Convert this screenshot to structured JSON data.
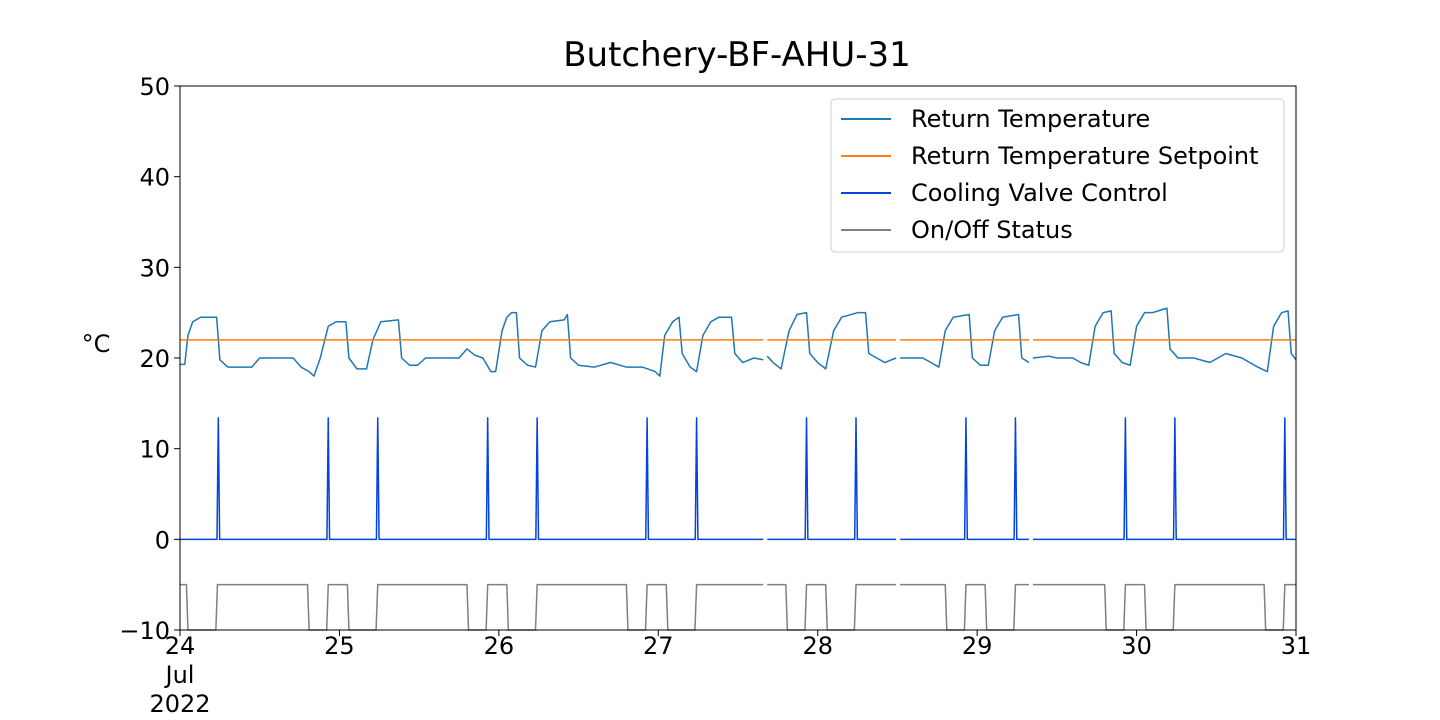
{
  "chart_data": {
    "type": "line",
    "title": "Butchery-BF-AHU-31",
    "xlabel": "",
    "ylabel": "°C",
    "x_range": [
      "2022-07-24 00:00",
      "2022-07-31 00:00"
    ],
    "ylim": [
      -10,
      50
    ],
    "grid": false,
    "legend_position": "top-right",
    "y_ticks": [
      -10,
      0,
      10,
      20,
      30,
      40,
      50
    ],
    "y_tick_labels": [
      "−10",
      "0",
      "10",
      "20",
      "30",
      "40",
      "50"
    ],
    "x_ticks": [
      "2022-07-24",
      "2022-07-25",
      "2022-07-26",
      "2022-07-27",
      "2022-07-28",
      "2022-07-29",
      "2022-07-30",
      "2022-07-31"
    ],
    "x_tick_labels": [
      {
        "day": "24",
        "month": "Jul",
        "year": "2022"
      },
      {
        "day": "25"
      },
      {
        "day": "26"
      },
      {
        "day": "27"
      },
      {
        "day": "28"
      },
      {
        "day": "29"
      },
      {
        "day": "30"
      },
      {
        "day": "31"
      }
    ],
    "data_gaps": [
      [
        "2022-07-27 15:48",
        "2022-07-27 16:24"
      ],
      [
        "2022-07-28 11:48",
        "2022-07-28 12:24"
      ],
      [
        "2022-07-29 07:48",
        "2022-07-29 08:24"
      ]
    ],
    "series": [
      {
        "name": "Return Temperature",
        "color": "#1f77b4",
        "values": [
          [
            "2022-07-24 00:00",
            19.3
          ],
          [
            "2022-07-24 00:43",
            19.3
          ],
          [
            "2022-07-24 01:12",
            22.5
          ],
          [
            "2022-07-24 01:55",
            24.0
          ],
          [
            "2022-07-24 03:07",
            24.5
          ],
          [
            "2022-07-24 05:31",
            24.5
          ],
          [
            "2022-07-24 06:00",
            19.8
          ],
          [
            "2022-07-24 07:12",
            19.0
          ],
          [
            "2022-07-24 10:48",
            19.0
          ],
          [
            "2022-07-24 12:00",
            20.0
          ],
          [
            "2022-07-24 17:02",
            20.0
          ],
          [
            "2022-07-24 18:14",
            19.0
          ],
          [
            "2022-07-24 19:26",
            18.5
          ],
          [
            "2022-07-24 20:10",
            18.0
          ],
          [
            "2022-07-24 21:07",
            20.0
          ],
          [
            "2022-07-24 22:19",
            23.5
          ],
          [
            "2022-07-24 23:31",
            24.0
          ],
          [
            "2022-07-25 00:58",
            24.0
          ],
          [
            "2022-07-25 01:26",
            20.0
          ],
          [
            "2022-07-25 02:38",
            18.8
          ],
          [
            "2022-07-25 04:05",
            18.8
          ],
          [
            "2022-07-25 05:02",
            22.0
          ],
          [
            "2022-07-25 06:14",
            24.0
          ],
          [
            "2022-07-25 08:53",
            24.2
          ],
          [
            "2022-07-25 09:22",
            20.0
          ],
          [
            "2022-07-25 10:34",
            19.2
          ],
          [
            "2022-07-25 11:46",
            19.2
          ],
          [
            "2022-07-25 12:58",
            20.0
          ],
          [
            "2022-07-25 18:00",
            20.0
          ],
          [
            "2022-07-25 19:12",
            21.0
          ],
          [
            "2022-07-25 20:24",
            20.3
          ],
          [
            "2022-07-25 21:36",
            20.0
          ],
          [
            "2022-07-25 22:48",
            18.5
          ],
          [
            "2022-07-25 23:31",
            18.5
          ],
          [
            "2022-07-26 00:29",
            23.0
          ],
          [
            "2022-07-26 01:12",
            24.5
          ],
          [
            "2022-07-26 01:55",
            25.0
          ],
          [
            "2022-07-26 02:38",
            25.0
          ],
          [
            "2022-07-26 03:07",
            20.0
          ],
          [
            "2022-07-26 04:19",
            19.2
          ],
          [
            "2022-07-26 05:31",
            19.0
          ],
          [
            "2022-07-26 06:29",
            23.0
          ],
          [
            "2022-07-26 07:41",
            24.0
          ],
          [
            "2022-07-26 09:50",
            24.2
          ],
          [
            "2022-07-26 10:19",
            24.8
          ],
          [
            "2022-07-26 10:48",
            20.0
          ],
          [
            "2022-07-26 12:00",
            19.2
          ],
          [
            "2022-07-26 14:24",
            19.0
          ],
          [
            "2022-07-26 16:48",
            19.5
          ],
          [
            "2022-07-26 19:12",
            19.0
          ],
          [
            "2022-07-26 21:36",
            19.0
          ],
          [
            "2022-07-26 23:31",
            18.5
          ],
          [
            "2022-07-27 00:14",
            18.0
          ],
          [
            "2022-07-27 00:58",
            22.5
          ],
          [
            "2022-07-27 02:10",
            24.0
          ],
          [
            "2022-07-27 03:07",
            24.5
          ],
          [
            "2022-07-27 03:36",
            20.5
          ],
          [
            "2022-07-27 04:48",
            19.0
          ],
          [
            "2022-07-27 05:46",
            18.5
          ],
          [
            "2022-07-27 06:43",
            22.5
          ],
          [
            "2022-07-27 07:55",
            24.0
          ],
          [
            "2022-07-27 09:07",
            24.5
          ],
          [
            "2022-07-27 11:02",
            24.5
          ],
          [
            "2022-07-27 11:31",
            20.5
          ],
          [
            "2022-07-27 12:43",
            19.5
          ],
          [
            "2022-07-27 14:24",
            20.0
          ],
          [
            "2022-07-27 15:48",
            19.8
          ],
          [
            "2022-07-27 16:24",
            20.2
          ],
          [
            "2022-07-27 17:17",
            19.5
          ],
          [
            "2022-07-27 18:29",
            18.8
          ],
          [
            "2022-07-27 19:41",
            23.0
          ],
          [
            "2022-07-27 20:53",
            24.8
          ],
          [
            "2022-07-27 22:19",
            25.0
          ],
          [
            "2022-07-27 22:48",
            20.5
          ],
          [
            "2022-07-28 00:00",
            19.5
          ],
          [
            "2022-07-28 01:12",
            18.8
          ],
          [
            "2022-07-28 02:24",
            23.0
          ],
          [
            "2022-07-28 03:36",
            24.5
          ],
          [
            "2022-07-28 06:00",
            25.0
          ],
          [
            "2022-07-28 07:12",
            25.0
          ],
          [
            "2022-07-28 07:41",
            20.5
          ],
          [
            "2022-07-28 08:53",
            20.0
          ],
          [
            "2022-07-28 10:05",
            19.5
          ],
          [
            "2022-07-28 11:48",
            20.0
          ],
          [
            "2022-07-28 12:24",
            20.0
          ],
          [
            "2022-07-28 15:50",
            20.0
          ],
          [
            "2022-07-28 17:02",
            19.5
          ],
          [
            "2022-07-28 18:14",
            19.0
          ],
          [
            "2022-07-28 19:12",
            23.0
          ],
          [
            "2022-07-28 20:24",
            24.5
          ],
          [
            "2022-07-28 22:48",
            24.8
          ],
          [
            "2022-07-28 23:17",
            20.0
          ],
          [
            "2022-07-29 00:29",
            19.2
          ],
          [
            "2022-07-29 01:41",
            19.2
          ],
          [
            "2022-07-29 02:38",
            23.0
          ],
          [
            "2022-07-29 03:50",
            24.5
          ],
          [
            "2022-07-29 06:14",
            24.8
          ],
          [
            "2022-07-29 06:43",
            20.0
          ],
          [
            "2022-07-29 07:48",
            19.5
          ],
          [
            "2022-07-29 08:24",
            20.0
          ],
          [
            "2022-07-29 10:48",
            20.2
          ],
          [
            "2022-07-29 12:00",
            20.0
          ],
          [
            "2022-07-29 14:24",
            20.0
          ],
          [
            "2022-07-29 15:36",
            19.5
          ],
          [
            "2022-07-29 16:48",
            19.2
          ],
          [
            "2022-07-29 17:46",
            23.5
          ],
          [
            "2022-07-29 18:58",
            25.0
          ],
          [
            "2022-07-29 20:10",
            25.2
          ],
          [
            "2022-07-29 20:38",
            20.5
          ],
          [
            "2022-07-29 21:50",
            19.5
          ],
          [
            "2022-07-29 23:02",
            19.2
          ],
          [
            "2022-07-30 00:00",
            23.5
          ],
          [
            "2022-07-30 01:12",
            25.0
          ],
          [
            "2022-07-30 02:24",
            25.0
          ],
          [
            "2022-07-30 04:34",
            25.5
          ],
          [
            "2022-07-30 05:02",
            21.0
          ],
          [
            "2022-07-30 06:14",
            20.0
          ],
          [
            "2022-07-30 08:38",
            20.0
          ],
          [
            "2022-07-30 11:02",
            19.5
          ],
          [
            "2022-07-30 13:26",
            20.5
          ],
          [
            "2022-07-30 15:50",
            20.0
          ],
          [
            "2022-07-30 18:14",
            19.0
          ],
          [
            "2022-07-30 19:41",
            18.5
          ],
          [
            "2022-07-30 20:38",
            23.5
          ],
          [
            "2022-07-30 21:50",
            25.0
          ],
          [
            "2022-07-30 22:48",
            25.2
          ],
          [
            "2022-07-30 23:17",
            20.5
          ],
          [
            "2022-07-31 00:00",
            19.8
          ]
        ]
      },
      {
        "name": "Return Temperature Setpoint",
        "color": "#ff7f0e",
        "values": [
          [
            "2022-07-24 00:00",
            22
          ],
          [
            "2022-07-27 15:48",
            22
          ],
          [
            "2022-07-27 16:24",
            22
          ],
          [
            "2022-07-28 11:48",
            22
          ],
          [
            "2022-07-28 12:24",
            22
          ],
          [
            "2022-07-29 07:48",
            22
          ],
          [
            "2022-07-29 08:24",
            22
          ],
          [
            "2022-07-31 00:00",
            22
          ]
        ]
      },
      {
        "name": "Cooling Valve Control",
        "color": "#0343df",
        "values": [
          [
            "2022-07-24 00:00",
            0
          ],
          [
            "2022-07-31 00:00",
            0
          ]
        ],
        "spikes": {
          "value": 13.4,
          "at": [
            "2022-07-24 05:46",
            "2022-07-24 22:19",
            "2022-07-25 05:46",
            "2022-07-25 22:19",
            "2022-07-26 05:46",
            "2022-07-26 22:19",
            "2022-07-27 05:46",
            "2022-07-27 22:19",
            "2022-07-28 05:46",
            "2022-07-28 22:19",
            "2022-07-29 05:46",
            "2022-07-29 22:19",
            "2022-07-30 05:46",
            "2022-07-30 22:19"
          ]
        }
      },
      {
        "name": "On/Off Status",
        "color": "#808080",
        "values": [
          [
            "2022-07-24 00:00",
            -5
          ],
          [
            "2022-07-24 00:58",
            -5
          ],
          [
            "2022-07-24 01:12",
            -10
          ],
          [
            "2022-07-24 05:24",
            -10
          ],
          [
            "2022-07-24 05:38",
            -5
          ],
          [
            "2022-07-24 19:12",
            -5
          ],
          [
            "2022-07-24 19:26",
            -10
          ],
          [
            "2022-07-24 22:05",
            -10
          ],
          [
            "2022-07-24 22:19",
            -5
          ],
          [
            "2022-07-25 01:12",
            -5
          ],
          [
            "2022-07-25 01:26",
            -10
          ],
          [
            "2022-07-25 05:31",
            -10
          ],
          [
            "2022-07-25 05:46",
            -5
          ],
          [
            "2022-07-25 19:12",
            -5
          ],
          [
            "2022-07-25 19:26",
            -10
          ],
          [
            "2022-07-25 22:05",
            -10
          ],
          [
            "2022-07-25 22:19",
            -5
          ],
          [
            "2022-07-26 01:12",
            -5
          ],
          [
            "2022-07-26 01:26",
            -10
          ],
          [
            "2022-07-26 05:31",
            -10
          ],
          [
            "2022-07-26 05:46",
            -5
          ],
          [
            "2022-07-26 19:12",
            -5
          ],
          [
            "2022-07-26 19:26",
            -10
          ],
          [
            "2022-07-26 22:05",
            -10
          ],
          [
            "2022-07-26 22:19",
            -5
          ],
          [
            "2022-07-27 01:12",
            -5
          ],
          [
            "2022-07-27 01:26",
            -10
          ],
          [
            "2022-07-27 05:31",
            -10
          ],
          [
            "2022-07-27 05:46",
            -5
          ],
          [
            "2022-07-27 15:48",
            -5
          ],
          [
            "2022-07-27 16:24",
            -5
          ],
          [
            "2022-07-27 19:12",
            -5
          ],
          [
            "2022-07-27 19:26",
            -10
          ],
          [
            "2022-07-27 22:05",
            -10
          ],
          [
            "2022-07-27 22:19",
            -5
          ],
          [
            "2022-07-28 01:12",
            -5
          ],
          [
            "2022-07-28 01:26",
            -10
          ],
          [
            "2022-07-28 05:31",
            -10
          ],
          [
            "2022-07-28 05:46",
            -5
          ],
          [
            "2022-07-28 11:48",
            -5
          ],
          [
            "2022-07-28 12:24",
            -5
          ],
          [
            "2022-07-28 19:12",
            -5
          ],
          [
            "2022-07-28 19:26",
            -10
          ],
          [
            "2022-07-28 22:05",
            -10
          ],
          [
            "2022-07-28 22:19",
            -5
          ],
          [
            "2022-07-29 01:12",
            -5
          ],
          [
            "2022-07-29 01:26",
            -10
          ],
          [
            "2022-07-29 05:31",
            -10
          ],
          [
            "2022-07-29 05:46",
            -5
          ],
          [
            "2022-07-29 07:48",
            -5
          ],
          [
            "2022-07-29 08:24",
            -5
          ],
          [
            "2022-07-29 19:12",
            -5
          ],
          [
            "2022-07-29 19:26",
            -10
          ],
          [
            "2022-07-29 22:05",
            -10
          ],
          [
            "2022-07-29 22:19",
            -5
          ],
          [
            "2022-07-30 01:12",
            -5
          ],
          [
            "2022-07-30 01:26",
            -10
          ],
          [
            "2022-07-30 05:31",
            -10
          ],
          [
            "2022-07-30 05:46",
            -5
          ],
          [
            "2022-07-30 19:12",
            -5
          ],
          [
            "2022-07-30 19:26",
            -10
          ],
          [
            "2022-07-30 22:05",
            -10
          ],
          [
            "2022-07-30 22:19",
            -5
          ],
          [
            "2022-07-31 00:00",
            -5
          ]
        ]
      }
    ]
  }
}
